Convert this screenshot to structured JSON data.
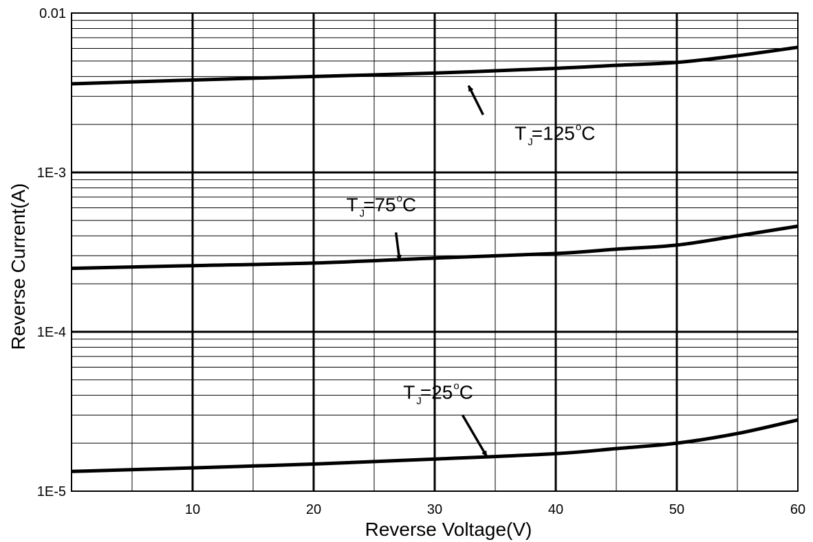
{
  "chart_data": {
    "type": "line",
    "xlabel": "Reverse Voltage(V)",
    "ylabel": "Reverse  Current(A)",
    "xlim": [
      0,
      60
    ],
    "ylim": [
      1e-05,
      0.01
    ],
    "yscale": "log",
    "grid": true,
    "x_ticks": [
      10,
      20,
      30,
      40,
      50,
      60
    ],
    "y_ticks": [
      {
        "value": 1e-05,
        "label": "1E-5"
      },
      {
        "value": 0.0001,
        "label": "1E-4"
      },
      {
        "value": 0.001,
        "label": "1E-3"
      },
      {
        "value": 0.01,
        "label": "0.01"
      }
    ],
    "series": [
      {
        "name": "TJ=125°C",
        "x": [
          0,
          10,
          20,
          30,
          40,
          45,
          50,
          55,
          60
        ],
        "y": [
          0.0036,
          0.0038,
          0.004,
          0.0042,
          0.0045,
          0.0047,
          0.0049,
          0.0054,
          0.0061
        ]
      },
      {
        "name": "TJ=75°C",
        "x": [
          0,
          10,
          20,
          30,
          40,
          45,
          50,
          55,
          60
        ],
        "y": [
          0.00025,
          0.00026,
          0.00027,
          0.00029,
          0.00031,
          0.00033,
          0.00035,
          0.0004,
          0.00046
        ]
      },
      {
        "name": "TJ=25°C",
        "x": [
          0,
          10,
          20,
          30,
          40,
          45,
          50,
          55,
          60
        ],
        "y": [
          1.33e-05,
          1.4e-05,
          1.48e-05,
          1.59e-05,
          1.72e-05,
          1.85e-05,
          2e-05,
          2.3e-05,
          2.8e-05
        ]
      }
    ],
    "annotations": [
      {
        "text_main": "T",
        "text_sub": "J",
        "text_rest": "=125",
        "text_sup": "o",
        "text_unit": "C",
        "label_x": 36.6,
        "label_y": 0.0016,
        "arrow_from": [
          34.0,
          0.0023
        ],
        "arrow_to": [
          32.8,
          0.0035
        ]
      },
      {
        "text_main": "T",
        "text_sub": "J",
        "text_rest": "=75",
        "text_sup": "o",
        "text_unit": "C",
        "label_x": 22.7,
        "label_y": 0.00057,
        "arrow_from": [
          26.8,
          0.00042
        ],
        "arrow_to": [
          27.1,
          0.00028
        ]
      },
      {
        "text_main": "T",
        "text_sub": "J",
        "text_rest": "=25",
        "text_sup": "o",
        "text_unit": "C",
        "label_x": 27.4,
        "label_y": 3.8e-05,
        "arrow_from": [
          32.3,
          3e-05
        ],
        "arrow_to": [
          34.3,
          1.65e-05
        ]
      }
    ]
  }
}
